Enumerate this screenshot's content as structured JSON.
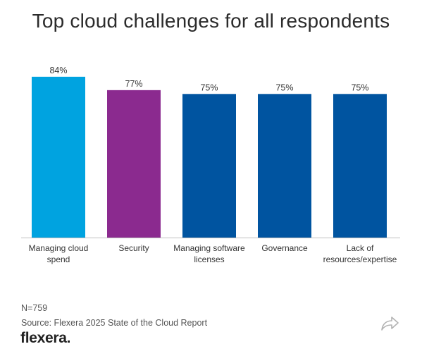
{
  "header": {
    "title": "Top cloud challenges for all respondents"
  },
  "chart_data": {
    "type": "bar",
    "title": "Top cloud challenges for all respondents",
    "xlabel": "",
    "ylabel": "",
    "ylim": [
      0,
      100
    ],
    "grid": false,
    "categories": [
      [
        "Managing cloud",
        "spend"
      ],
      [
        "Security"
      ],
      [
        "Managing software",
        "licenses"
      ],
      [
        "Governance"
      ],
      [
        "Lack of",
        "resources/expertise"
      ]
    ],
    "values": [
      84,
      77,
      75,
      75,
      75
    ],
    "value_labels": [
      "84%",
      "77%",
      "75%",
      "75%",
      "75%"
    ],
    "colors": [
      "#00a3e0",
      "#8b2a8f",
      "#0054a0",
      "#0054a0",
      "#0054a0"
    ]
  },
  "footer": {
    "sample_size": "N=759",
    "source": "Source: Flexera 2025 State of the Cloud Report",
    "brand": "flexera",
    "share_icon": "share-arrow-icon"
  },
  "colors": {
    "axis": "#bfbfbf",
    "text": "#333333"
  }
}
